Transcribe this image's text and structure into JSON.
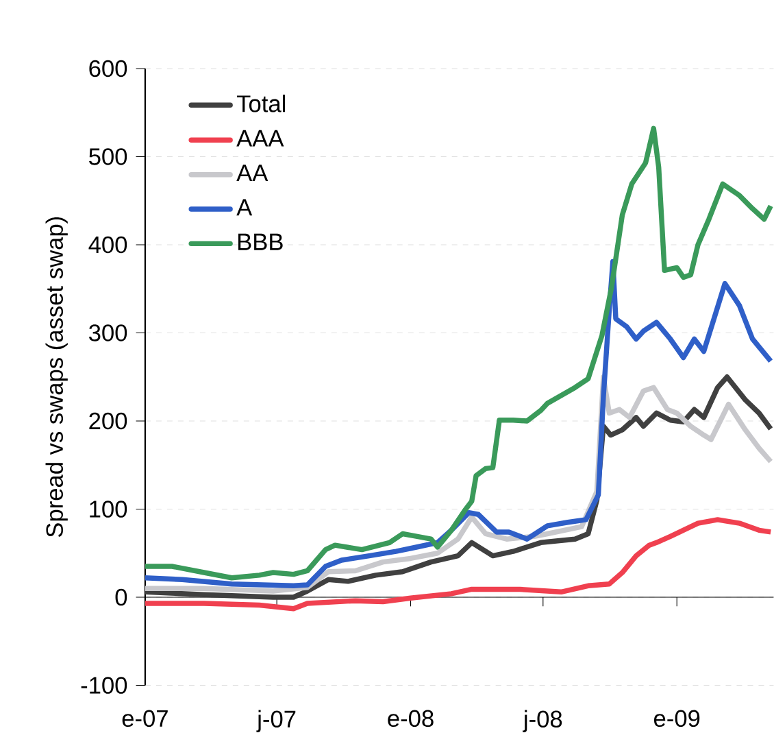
{
  "chart_data": {
    "type": "line",
    "ylabel": "Spread vs swaps (asset swap)",
    "ylim": [
      -100,
      600
    ],
    "yticks": [
      -100,
      0,
      100,
      200,
      300,
      400,
      500,
      600
    ],
    "xlim": [
      "2007-01-01",
      "2009-05-14"
    ],
    "xticks": [
      {
        "value": "2007-01-01",
        "label": "e-07"
      },
      {
        "value": "2007-07-01",
        "label": "j-07"
      },
      {
        "value": "2008-01-01",
        "label": "e-08"
      },
      {
        "value": "2008-07-01",
        "label": "j-08"
      },
      {
        "value": "2009-01-01",
        "label": "e-09"
      }
    ],
    "grid": "y",
    "legend": "top left",
    "marker": "none",
    "line_style": "solid",
    "series": [
      {
        "name": "Total",
        "color": "#404040",
        "x": [
          "2007-01-01",
          "2007-03-23",
          "2007-06-26",
          "2007-07-24",
          "2007-08-12",
          "2007-09-10",
          "2007-10-07",
          "2007-11-14",
          "2007-12-21",
          "2008-01-29",
          "2008-03-06",
          "2008-03-25",
          "2008-04-23",
          "2008-05-21",
          "2008-06-28",
          "2008-08-14",
          "2008-09-01",
          "2008-09-13",
          "2008-09-22",
          "2008-10-02",
          "2008-10-18",
          "2008-11-06",
          "2008-11-16",
          "2008-12-04",
          "2008-12-23",
          "2009-01-10",
          "2009-01-25",
          "2009-02-07",
          "2009-02-26",
          "2009-03-11",
          "2009-04-05",
          "2009-04-24",
          "2009-05-10"
        ],
        "values": [
          6,
          3,
          0,
          0,
          7,
          20,
          18,
          25,
          29,
          40,
          47,
          62,
          47,
          52,
          62,
          66,
          72,
          110,
          194,
          184,
          190,
          204,
          194,
          209,
          201,
          199,
          213,
          204,
          238,
          250,
          224,
          209,
          191
        ]
      },
      {
        "name": "AAA",
        "color": "#f0404f",
        "x": [
          "2007-01-01",
          "2007-03-23",
          "2007-06-07",
          "2007-07-24",
          "2007-08-12",
          "2007-10-17",
          "2007-11-24",
          "2008-01-01",
          "2008-02-26",
          "2008-03-25",
          "2008-05-30",
          "2008-07-26",
          "2008-09-01",
          "2008-09-30",
          "2008-10-18",
          "2008-11-06",
          "2008-11-24",
          "2008-12-04",
          "2008-12-23",
          "2009-01-30",
          "2009-02-26",
          "2009-03-28",
          "2009-04-24",
          "2009-05-10"
        ],
        "values": [
          -7,
          -7,
          -9,
          -13,
          -7,
          -4,
          -5,
          -1,
          4,
          9,
          9,
          6,
          13,
          15,
          28,
          47,
          59,
          62,
          69,
          84,
          88,
          84,
          76,
          74
        ]
      },
      {
        "name": "AA",
        "color": "#c8c8cc",
        "x": [
          "2007-01-01",
          "2007-03-23",
          "2007-06-26",
          "2007-08-12",
          "2007-09-10",
          "2007-10-17",
          "2007-11-24",
          "2008-01-01",
          "2008-02-07",
          "2008-03-06",
          "2008-03-25",
          "2008-04-13",
          "2008-05-12",
          "2008-06-19",
          "2008-07-07",
          "2008-08-23",
          "2008-09-13",
          "2008-09-22",
          "2008-09-30",
          "2008-10-14",
          "2008-10-28",
          "2008-11-16",
          "2008-11-30",
          "2008-12-19",
          "2009-01-01",
          "2009-01-20",
          "2009-02-07",
          "2009-02-17",
          "2009-03-13",
          "2009-04-05",
          "2009-04-24",
          "2009-05-10"
        ],
        "values": [
          10,
          10,
          7,
          11,
          29,
          30,
          40,
          44,
          50,
          66,
          91,
          72,
          66,
          69,
          72,
          80,
          120,
          250,
          209,
          213,
          204,
          234,
          238,
          213,
          209,
          194,
          184,
          179,
          219,
          190,
          169,
          154
        ]
      },
      {
        "name": "A",
        "color": "#2f5fc8",
        "x": [
          "2007-01-01",
          "2007-02-21",
          "2007-04-30",
          "2007-07-24",
          "2007-08-12",
          "2007-09-06",
          "2007-09-28",
          "2007-11-05",
          "2007-12-12",
          "2008-01-10",
          "2008-02-07",
          "2008-02-26",
          "2008-03-21",
          "2008-04-03",
          "2008-04-28",
          "2008-05-15",
          "2008-06-09",
          "2008-07-07",
          "2008-08-04",
          "2008-08-29",
          "2008-09-15",
          "2008-09-22",
          "2008-09-30",
          "2008-10-05",
          "2008-10-09",
          "2008-10-24",
          "2008-11-06",
          "2008-11-16",
          "2008-12-04",
          "2008-12-23",
          "2009-01-10",
          "2009-01-25",
          "2009-02-07",
          "2009-02-21",
          "2009-03-08",
          "2009-03-28",
          "2009-04-15",
          "2009-05-10"
        ],
        "values": [
          22,
          20,
          15,
          13,
          14,
          35,
          42,
          47,
          52,
          57,
          62,
          76,
          96,
          94,
          74,
          74,
          66,
          81,
          85,
          88,
          116,
          228,
          326,
          381,
          316,
          307,
          293,
          302,
          312,
          293,
          272,
          293,
          279,
          316,
          356,
          331,
          293,
          268
        ]
      },
      {
        "name": "BBB",
        "color": "#3a9a5a",
        "x": [
          "2007-01-01",
          "2007-02-07",
          "2007-03-23",
          "2007-04-30",
          "2007-06-07",
          "2007-06-26",
          "2007-07-24",
          "2007-08-12",
          "2007-09-06",
          "2007-09-19",
          "2007-10-26",
          "2007-12-03",
          "2007-12-21",
          "2008-01-10",
          "2008-01-29",
          "2008-02-07",
          "2008-02-26",
          "2008-03-15",
          "2008-03-25",
          "2008-03-31",
          "2008-04-13",
          "2008-04-23",
          "2008-05-02",
          "2008-05-21",
          "2008-06-09",
          "2008-06-28",
          "2008-07-07",
          "2008-08-14",
          "2008-09-01",
          "2008-09-20",
          "2008-10-03",
          "2008-10-18",
          "2008-10-31",
          "2008-11-19",
          "2008-11-30",
          "2008-12-07",
          "2008-12-15",
          "2009-01-01",
          "2009-01-10",
          "2009-01-20",
          "2009-01-30",
          "2009-02-14",
          "2009-03-05",
          "2009-03-28",
          "2009-04-15",
          "2009-05-01",
          "2009-05-10"
        ],
        "values": [
          35,
          35,
          28,
          22,
          25,
          28,
          26,
          30,
          54,
          59,
          54,
          62,
          72,
          69,
          66,
          57,
          76,
          98,
          109,
          138,
          146,
          147,
          201,
          201,
          200,
          212,
          220,
          238,
          248,
          297,
          351,
          434,
          469,
          493,
          532,
          488,
          371,
          374,
          363,
          366,
          400,
          429,
          469,
          456,
          441,
          429,
          444
        ]
      }
    ]
  }
}
